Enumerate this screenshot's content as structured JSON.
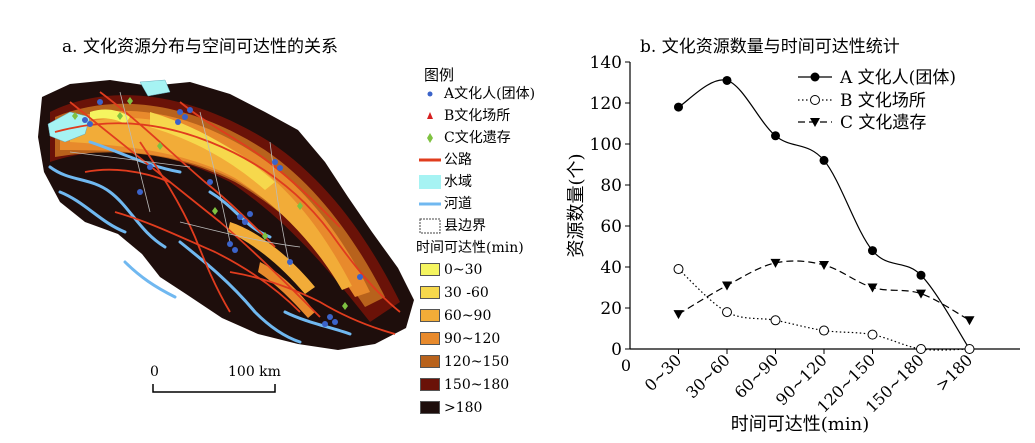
{
  "map_panel": {
    "title": "a. 文化资源分布与空间可达性的关系",
    "legend": {
      "title": "图例",
      "items": [
        {
          "label": "A文化人(团体)",
          "icon": "blue-dot-icon",
          "color": "#3b63c9"
        },
        {
          "label": "B文化场所",
          "icon": "red-triangle-icon",
          "color": "#d62020"
        },
        {
          "label": "C文化遗存",
          "icon": "green-diamond-icon",
          "color": "#7fc241"
        },
        {
          "label": "公路",
          "icon": "road-line-icon",
          "color": "#e03c1e"
        },
        {
          "label": "水域",
          "icon": "water-area-icon",
          "color": "#a6f3f3"
        },
        {
          "label": "河道",
          "icon": "river-line-icon",
          "color": "#70b8f0"
        },
        {
          "label": "县边界",
          "icon": "county-boundary-icon",
          "color": "#444444"
        }
      ],
      "accessibility_title": "时间可达性(min)",
      "accessibility_classes": [
        {
          "label": "0~30",
          "color": "#f5f560"
        },
        {
          "label": "30 -60",
          "color": "#f6d84c"
        },
        {
          "label": "60~90",
          "color": "#f2ac38"
        },
        {
          "label": "90~120",
          "color": "#e88a2c"
        },
        {
          "label": "120~150",
          "color": "#b8621c"
        },
        {
          "label": "150~180",
          "color": "#6a1208"
        },
        {
          "label": ">180",
          "color": "#1e0e0c"
        }
      ]
    },
    "scale_bar": {
      "start": "0",
      "end": "100 km"
    }
  },
  "chart_data": {
    "type": "line",
    "title": "b. 文化资源数量与时间可达性统计",
    "xlabel": "时间可达性(min)",
    "ylabel": "资源数量(个)",
    "categories": [
      "0~30",
      "30~60",
      "60~90",
      "90~120",
      "120~150",
      "150~180",
      ">180"
    ],
    "ylim": [
      0,
      140
    ],
    "yticks": [
      "0",
      "20",
      "40",
      "60",
      "80",
      "100",
      "120",
      "140"
    ],
    "origin_x_label": "0",
    "legend_position": "top-right",
    "series": [
      {
        "name": "A 文化人(团体)",
        "values": [
          118,
          131,
          104,
          92,
          48,
          36,
          0
        ],
        "color": "#000000",
        "marker": "filled-circle",
        "style": "solid"
      },
      {
        "name": "B 文化场所",
        "values": [
          39,
          18,
          14,
          9,
          7,
          0,
          0
        ],
        "color": "#000000",
        "marker": "open-circle",
        "style": "dotted"
      },
      {
        "name": "C 文化遗存",
        "values": [
          17,
          31,
          42,
          41,
          30,
          27,
          14
        ],
        "color": "#000000",
        "marker": "down-triangle",
        "style": "dashed"
      }
    ]
  }
}
